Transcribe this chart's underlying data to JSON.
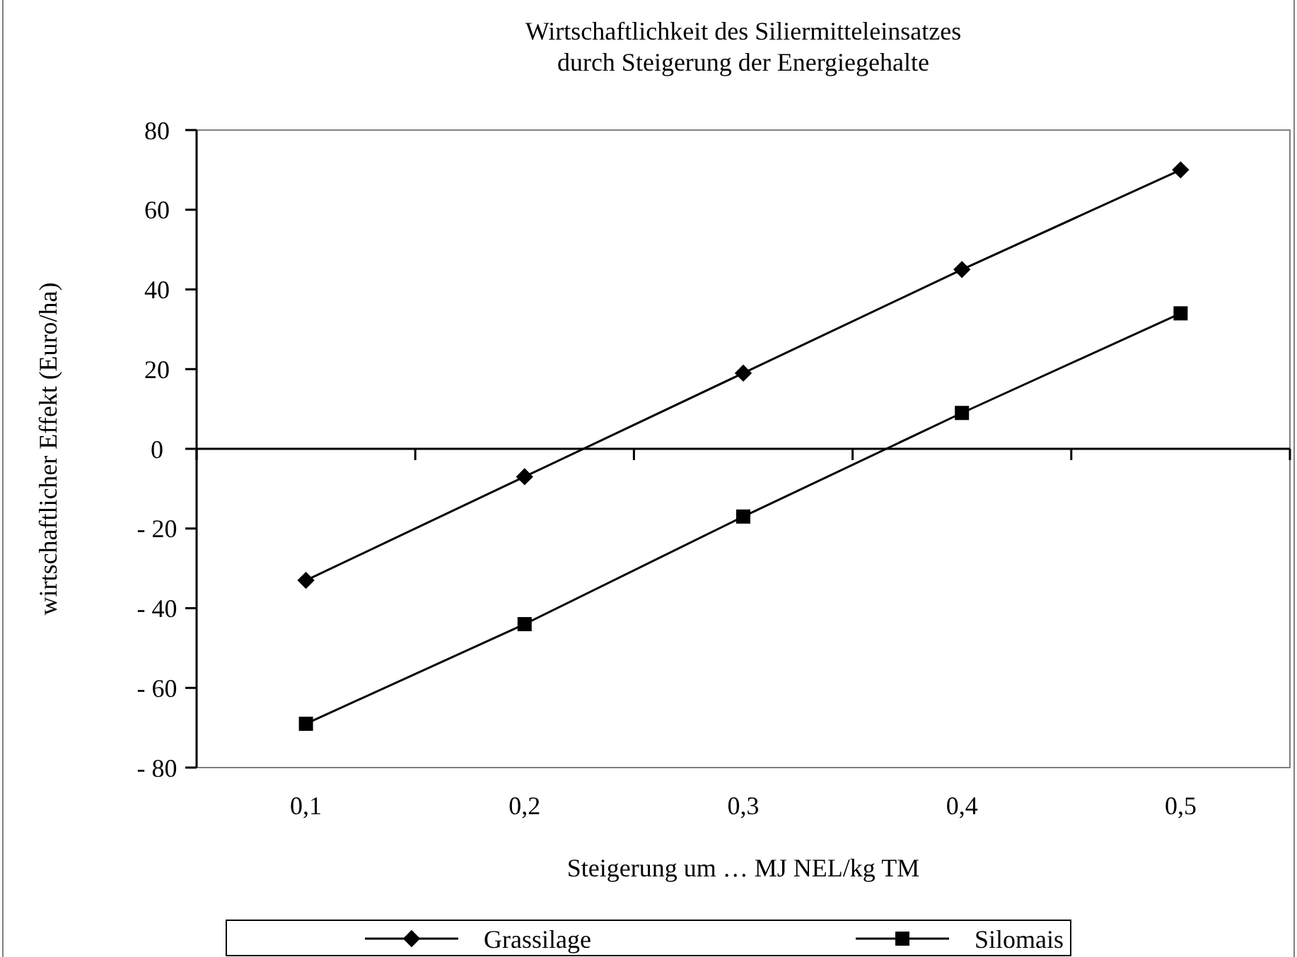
{
  "chart_data": {
    "type": "line",
    "title": "Wirtschaftlichkeit des Siliermitteleinsatzes\ndurch Steigerung der Energiegehalte",
    "xlabel": "Steigerung um … MJ NEL/kg TM",
    "ylabel": "wirtschaftlicher Effekt (Euro/ha)",
    "categories": [
      "0,1",
      "0,2",
      "0,3",
      "0,4",
      "0,5"
    ],
    "series": [
      {
        "name": "Grassilage",
        "color": "#000000",
        "marker": "diamond",
        "values": [
          -33,
          -7,
          19,
          45,
          70
        ]
      },
      {
        "name": "Silomais",
        "color": "#000000",
        "marker": "square",
        "values": [
          -69,
          -44,
          -17,
          9,
          34
        ]
      }
    ],
    "ylim": [
      -80,
      80
    ],
    "yticks": [
      {
        "value": -80,
        "label": "- 80"
      },
      {
        "value": -60,
        "label": "- 60"
      },
      {
        "value": -40,
        "label": "- 40"
      },
      {
        "value": -20,
        "label": "- 20"
      },
      0,
      20,
      40,
      60,
      80
    ],
    "legend": "bottom",
    "line_style": "solid"
  }
}
